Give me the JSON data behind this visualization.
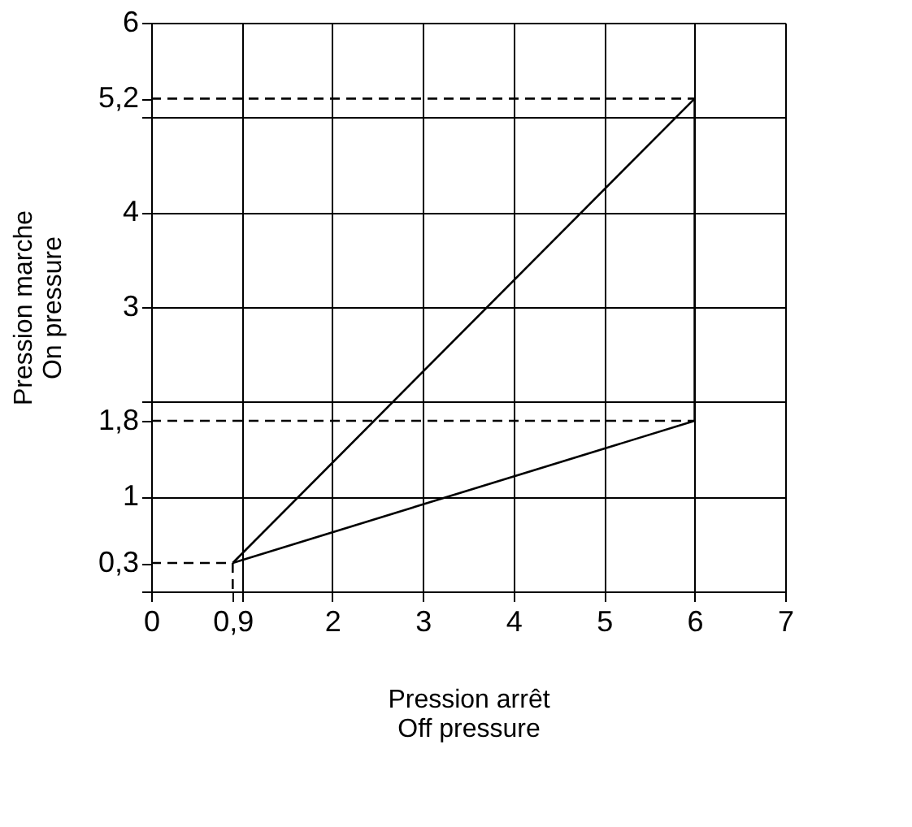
{
  "chart_data": {
    "type": "line",
    "xlabel": "Pression arrêt\nOff pressure",
    "ylabel": "Pression marche\nOn pressure",
    "xlim": [
      0,
      7
    ],
    "ylim": [
      0,
      6
    ],
    "xticks": [
      0,
      {
        "value": 0.9,
        "label": "0,9"
      },
      {
        "value": 1,
        "label": null
      },
      2,
      3,
      4,
      5,
      6,
      7
    ],
    "yticks": [
      {
        "value": 0,
        "label": null
      },
      {
        "value": 0.3,
        "label": "0,3"
      },
      1,
      {
        "value": 1.8,
        "label": "1,8"
      },
      {
        "value": 2,
        "label": null
      },
      3,
      4,
      {
        "value": 5,
        "label": null
      },
      {
        "value": 5.2,
        "label": "5,2"
      },
      6
    ],
    "grid": true,
    "legend": false,
    "series": [
      {
        "color": "#000000",
        "x": [
          0.9,
          6
        ],
        "values": [
          0.3,
          5.2
        ],
        "line_style": "solid"
      },
      {
        "color": "#000000",
        "x": [
          0.9,
          6
        ],
        "values": [
          0.3,
          1.8
        ],
        "line_style": "solid"
      },
      {
        "color": "#000000",
        "x": [
          6,
          6
        ],
        "values": [
          1.8,
          5.2
        ],
        "line_style": "solid"
      },
      {
        "color": "#000000",
        "x": [
          0,
          6
        ],
        "values": [
          5.2,
          5.2
        ],
        "line_style": "dashed"
      },
      {
        "color": "#000000",
        "x": [
          0,
          6
        ],
        "values": [
          1.8,
          1.8
        ],
        "line_style": "dashed"
      },
      {
        "color": "#000000",
        "x": [
          0,
          0.9
        ],
        "values": [
          0.3,
          0.3
        ],
        "line_style": "dashed"
      },
      {
        "color": "#000000",
        "x": [
          0.9,
          0.9
        ],
        "values": [
          0.3,
          0
        ],
        "line_style": "dashed"
      }
    ]
  }
}
